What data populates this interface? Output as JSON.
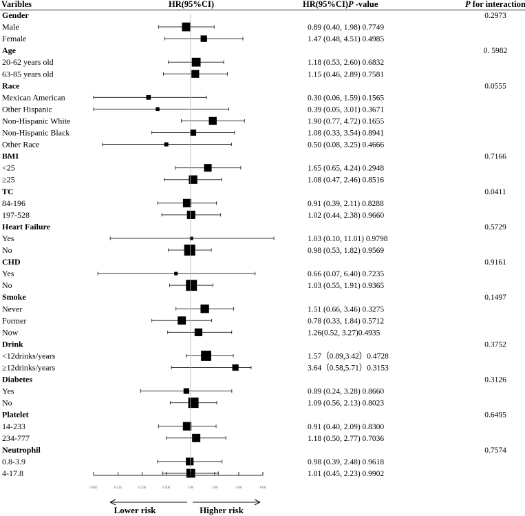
{
  "chart_data": {
    "type": "forest",
    "headers": {
      "variables": "Varibles",
      "hr": "HR(95%CI)",
      "hr_p": "HR(95%CI)",
      "p_suffix": "P",
      "p_value_suffix": " -value",
      "p_interaction_p": "P",
      "p_interaction_rest": " for interaction"
    },
    "groups": [
      {
        "name": "Gender",
        "p_interaction": "0.2973",
        "rows": [
          {
            "label": "Male",
            "hr": 0.89,
            "lo": 0.4,
            "hi": 1.98,
            "text": "0.89 (0.40, 1.98) 0.7749"
          },
          {
            "label": "Female",
            "hr": 1.47,
            "lo": 0.48,
            "hi": 4.51,
            "text": "1.47 (0.48, 4.51) 0.4985"
          }
        ]
      },
      {
        "name": "Age",
        "p_interaction": "0. 5982",
        "rows": [
          {
            "label": "20-62 years old",
            "hr": 1.18,
            "lo": 0.53,
            "hi": 2.6,
            "text": "1.18 (0.53, 2.60) 0.6832"
          },
          {
            "label": "63-85 years old",
            "hr": 1.15,
            "lo": 0.46,
            "hi": 2.89,
            "text": "1.15 (0.46, 2.89) 0.7581"
          }
        ]
      },
      {
        "name": "Race",
        "p_interaction": "0.0555",
        "rows": [
          {
            "label": "Mexican American",
            "hr": 0.3,
            "lo": 0.06,
            "hi": 1.59,
            "text": "0.30 (0.06, 1.59) 0.1565"
          },
          {
            "label": "Other Hispanic",
            "hr": 0.39,
            "lo": 0.05,
            "hi": 3.01,
            "text": "0.39 (0.05, 3.01) 0.3671"
          },
          {
            "label": "Non-Hispanic White",
            "hr": 1.9,
            "lo": 0.77,
            "hi": 4.72,
            "text": "1.90 (0.77, 4.72) 0.1655"
          },
          {
            "label": "Non-Hispanic Black",
            "hr": 1.08,
            "lo": 0.33,
            "hi": 3.54,
            "text": "1.08 (0.33, 3.54) 0.8941"
          },
          {
            "label": "Other Race",
            "hr": 0.5,
            "lo": 0.08,
            "hi": 3.25,
            "text": "0.50 (0.08, 3.25) 0.4666"
          }
        ]
      },
      {
        "name": "BMI",
        "p_interaction": "0.7166",
        "rows": [
          {
            "label": "<25",
            "hr": 1.65,
            "lo": 0.65,
            "hi": 4.24,
            "text": "1.65 (0.65, 4.24) 0.2948"
          },
          {
            "label": "≥25",
            "hr": 1.08,
            "lo": 0.47,
            "hi": 2.46,
            "text": "1.08 (0.47, 2.46) 0.8516"
          }
        ]
      },
      {
        "name": "TC",
        "p_interaction": "0.0411",
        "rows": [
          {
            "label": "84-196",
            "hr": 0.91,
            "lo": 0.39,
            "hi": 2.11,
            "text": "0.91 (0.39, 2.11) 0.8288"
          },
          {
            "label": "197-528",
            "hr": 1.02,
            "lo": 0.44,
            "hi": 2.38,
            "text": "1.02 (0.44, 2.38) 0.9660"
          }
        ]
      },
      {
        "name": "Heart Failure",
        "p_interaction": "0.5729",
        "rows": [
          {
            "label": "Yes",
            "hr": 1.03,
            "lo": 0.1,
            "hi": 11.01,
            "text": "1.03 (0.10, 11.01) 0.9798"
          },
          {
            "label": "No",
            "hr": 0.98,
            "lo": 0.53,
            "hi": 1.82,
            "text": "0.98 (0.53, 1.82) 0.9569"
          }
        ]
      },
      {
        "name": "CHD",
        "p_interaction": "0.9161",
        "rows": [
          {
            "label": "Yes",
            "hr": 0.66,
            "lo": 0.07,
            "hi": 6.4,
            "text": "0.66 (0.07, 6.40) 0.7235"
          },
          {
            "label": "No",
            "hr": 1.03,
            "lo": 0.55,
            "hi": 1.91,
            "text": "1.03 (0.55, 1.91) 0.9365"
          }
        ]
      },
      {
        "name": "Smoke",
        "p_interaction": "0.1497",
        "rows": [
          {
            "label": "Never",
            "hr": 1.51,
            "lo": 0.66,
            "hi": 3.46,
            "text": "1.51 (0.66, 3.46) 0.3275"
          },
          {
            "label": "Former",
            "hr": 0.78,
            "lo": 0.33,
            "hi": 1.84,
            "text": "0.78 (0.33, 1.84) 0.5712"
          },
          {
            "label": "Now",
            "hr": 1.26,
            "lo": 0.52,
            "hi": 3.27,
            "text": "1.26(0.52, 3.27)0.4935"
          }
        ]
      },
      {
        "name": "Drink",
        "p_interaction": "0.3752",
        "rows": [
          {
            "label": "<12drinks/years",
            "hr": 1.57,
            "lo": 0.89,
            "hi": 3.42,
            "text": "1.57（0.89,3.42）0.4728"
          },
          {
            "label": "≥12drinks/years",
            "hr": 3.64,
            "lo": 0.58,
            "hi": 5.71,
            "text": "3.64（0.58,5.71）0.3153"
          }
        ]
      },
      {
        "name": "Diabetes",
        "p_interaction": "0.3126",
        "rows": [
          {
            "label": "Yes",
            "hr": 0.89,
            "lo": 0.24,
            "hi": 3.28,
            "text": "0.89 (0.24, 3.28) 0.8660"
          },
          {
            "label": "No",
            "hr": 1.09,
            "lo": 0.56,
            "hi": 2.13,
            "text": "1.09 (0.56, 2.13) 0.8023"
          }
        ]
      },
      {
        "name": "Platelet",
        "p_interaction": "0.6495",
        "rows": [
          {
            "label": "14-233",
            "hr": 0.91,
            "lo": 0.4,
            "hi": 2.09,
            "text": "0.91 (0.40, 2.09) 0.8300"
          },
          {
            "label": "234-777",
            "hr": 1.18,
            "lo": 0.5,
            "hi": 2.77,
            "text": "1.18 (0.50, 2.77) 0.7036"
          }
        ]
      },
      {
        "name": "Neutrophil",
        "p_interaction": "0.7574",
        "rows": [
          {
            "label": "0.8-3.9",
            "hr": 0.98,
            "lo": 0.39,
            "hi": 2.48,
            "text": "0.98 (0.39, 2.48) 0.9618"
          },
          {
            "label": "4-17.8",
            "hr": 1.01,
            "lo": 0.45,
            "hi": 2.23,
            "text": "1.01 (0.45, 2.23) 0.9902"
          }
        ]
      }
    ],
    "x_axis": {
      "scale": "log2",
      "range": [
        0.062,
        8.0
      ],
      "ticks": [
        0.062,
        0.125,
        0.25,
        0.5,
        1.0,
        2.0,
        4.0,
        8.0
      ],
      "tick_labels": [
        "0.062",
        "0.125",
        "0.250",
        "0.500",
        "1.00",
        "2.00",
        "4.00",
        "8.00"
      ],
      "reference": 1.0
    },
    "annotations": {
      "lower": "Lower risk",
      "higher": "Higher risk"
    }
  }
}
